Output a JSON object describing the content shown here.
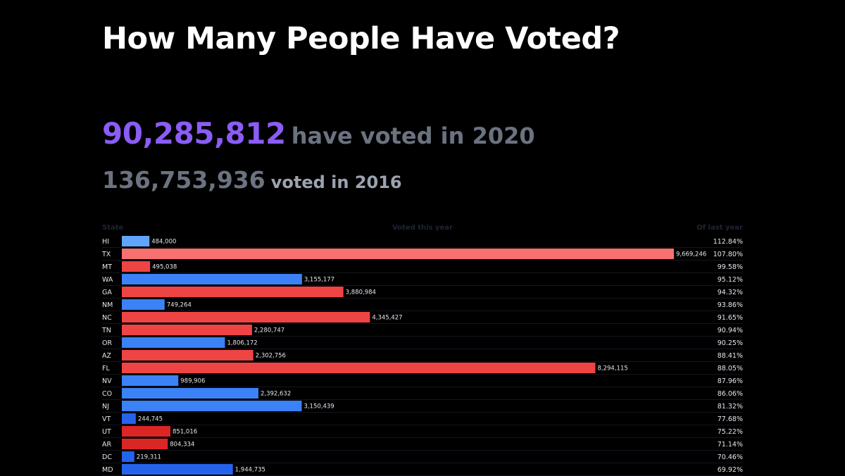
{
  "title": "How Many People Have Voted?",
  "summary": {
    "voted_2020": "90,285,812",
    "voted_2020_label": "have voted in 2020",
    "voted_2016": "136,753,936",
    "voted_2016_label": "voted in 2016"
  },
  "table_headers": {
    "state": "State",
    "voted": "Voted this year",
    "pct": "Of last year"
  },
  "colors": {
    "background": "#000000",
    "accent_purple": "#8b5cf6",
    "muted_gray": "#6b7280",
    "republican_red": "#ef4444",
    "republican_light": "#f87171",
    "republican_dark": "#dc2626",
    "democrat_blue": "#3b82f6",
    "democrat_light": "#60a5fa",
    "democrat_dark": "#2563eb"
  },
  "chart_data": {
    "type": "bar",
    "orientation": "horizontal",
    "categories": [
      "HI",
      "TX",
      "MT",
      "WA",
      "GA",
      "NM",
      "NC",
      "TN",
      "OR",
      "AZ",
      "FL",
      "NV",
      "CO",
      "NJ",
      "VT",
      "UT",
      "AR",
      "DC",
      "MD"
    ],
    "values": [
      484000,
      9669246,
      495038,
      3155177,
      3880984,
      749264,
      4345427,
      2280747,
      1806172,
      2302756,
      8294115,
      989906,
      2392632,
      3150439,
      244745,
      851016,
      804334,
      219311,
      1944735
    ],
    "value_labels": [
      "484,000",
      "9,669,246",
      "495,038",
      "3,155,177",
      "3,880,984",
      "749,264",
      "4,345,427",
      "2,280,747",
      "1,806,172",
      "2,302,756",
      "8,294,115",
      "989,906",
      "2,392,632",
      "3,150,439",
      "244,745",
      "851,016",
      "804,334",
      "219,311",
      "1,944,735"
    ],
    "pct_of_last_year": [
      "112.84%",
      "107.80%",
      "99.58%",
      "95.12%",
      "94.32%",
      "93.86%",
      "91.65%",
      "90.94%",
      "90.25%",
      "88.41%",
      "88.05%",
      "87.96%",
      "86.06%",
      "81.32%",
      "77.68%",
      "75.22%",
      "71.14%",
      "70.46%",
      "69.92%"
    ],
    "bar_colors": [
      "#60a5fa",
      "#f87171",
      "#ef4444",
      "#3b82f6",
      "#ef4444",
      "#3b82f6",
      "#ef4444",
      "#ef4444",
      "#3b82f6",
      "#ef4444",
      "#ef4444",
      "#3b82f6",
      "#3b82f6",
      "#3b82f6",
      "#2563eb",
      "#dc2626",
      "#dc2626",
      "#2563eb",
      "#2563eb"
    ],
    "xlim": [
      0,
      9669246
    ]
  }
}
